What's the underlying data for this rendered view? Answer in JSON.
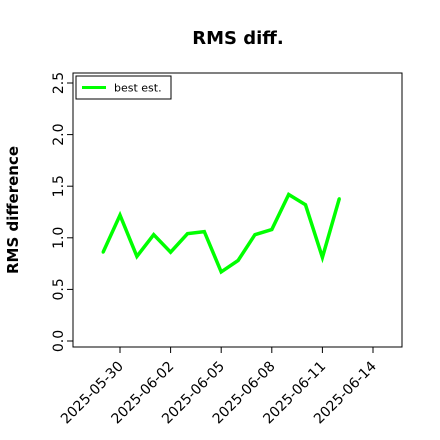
{
  "chart_data": {
    "type": "line",
    "title": "RMS diff.",
    "xlabel": "",
    "ylabel": "RMS difference",
    "ylim": [
      0.0,
      2.5
    ],
    "yticks": [
      "0.0",
      "0.5",
      "1.0",
      "1.5",
      "2.0",
      "2.5"
    ],
    "xticks": [
      "2025-05-30",
      "2025-06-02",
      "2025-06-05",
      "2025-06-08",
      "2025-06-11",
      "2025-06-14"
    ],
    "xlim": [
      "2025-05-27",
      "2025-06-16"
    ],
    "legend": {
      "placement": "top-left"
    },
    "grid": false,
    "series": [
      {
        "name": "best est.",
        "color": "#00ff00",
        "x": [
          "2025-05-29",
          "2025-05-30",
          "2025-05-31",
          "2025-06-01",
          "2025-06-02",
          "2025-06-03",
          "2025-06-04",
          "2025-06-05",
          "2025-06-06",
          "2025-06-07",
          "2025-06-08",
          "2025-06-09",
          "2025-06-10",
          "2025-06-11",
          "2025-06-12"
        ],
        "values": [
          0.86,
          1.22,
          0.82,
          1.03,
          0.86,
          1.04,
          1.06,
          0.67,
          0.78,
          1.03,
          1.08,
          1.42,
          1.32,
          0.81,
          1.38
        ]
      }
    ]
  }
}
